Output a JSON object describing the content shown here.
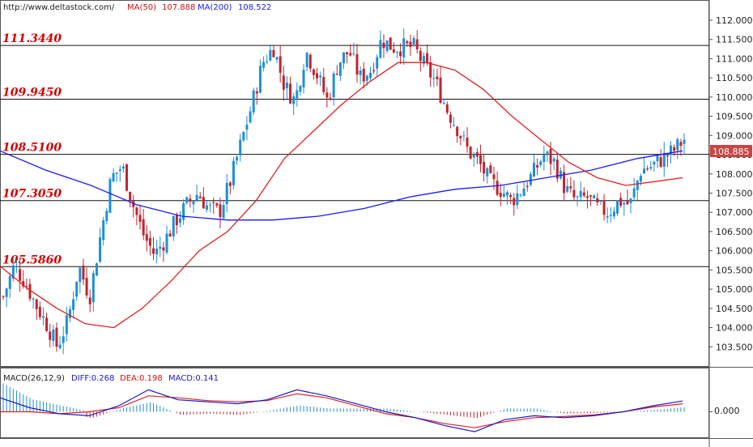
{
  "header": {
    "source": "http://www.deltastock.com/",
    "ma50_label": "MA(50)",
    "ma50_value": "107.888",
    "ma200_label": "MA(200)",
    "ma200_value": "108.522"
  },
  "current_price": "108.885",
  "colors": {
    "bull": "#1e8fd6",
    "bear": "#c0242e",
    "ma50": "#e02020",
    "ma200": "#1a1aff",
    "level_text": "#d40000",
    "price_tag_bg": "#cc4444",
    "diff": "#1a1acc",
    "dea": "#e02020"
  },
  "macd_panel": {
    "label": "MACD(26,12,9)",
    "diff_label": "DIFF:0.268",
    "dea_label": "DEA:0.198",
    "macd_label": "MACD:0.141",
    "zero_tick": "0.000"
  },
  "chart_data": {
    "type": "candlestick",
    "ylim": [
      103.0,
      112.4
    ],
    "y_ticks": [
      "103.500",
      "104.000",
      "104.500",
      "105.000",
      "105.500",
      "106.000",
      "106.500",
      "107.000",
      "107.500",
      "108.000",
      "108.500",
      "109.000",
      "109.500",
      "110.000",
      "110.500",
      "111.000",
      "111.500",
      "112.000"
    ],
    "levels": [
      {
        "value": 111.344,
        "label": "111.3440"
      },
      {
        "value": 109.945,
        "label": "109.9450"
      },
      {
        "value": 108.51,
        "label": "108.5100"
      },
      {
        "value": 107.305,
        "label": "107.3050"
      },
      {
        "value": 105.586,
        "label": "105.5860"
      }
    ],
    "close_path": [
      104.8,
      105.6,
      105.2,
      104.6,
      104.1,
      103.5,
      104.2,
      105.6,
      104.8,
      106.4,
      107.9,
      108.2,
      107.2,
      106.4,
      105.9,
      106.3,
      106.8,
      107.2,
      107.5,
      107.1,
      107.0,
      107.8,
      108.8,
      109.8,
      110.9,
      111.3,
      110.3,
      109.9,
      111.2,
      110.6,
      109.9,
      110.9,
      111.2,
      110.5,
      110.7,
      111.5,
      111.3,
      111.3,
      111.3,
      110.8,
      110.4,
      109.7,
      109.2,
      108.6,
      108.3,
      107.8,
      107.6,
      107.3,
      107.6,
      108.0,
      108.5,
      108.3,
      107.6,
      107.3,
      107.4,
      107.1,
      107.0,
      107.3,
      107.2,
      108.1,
      108.2,
      108.4,
      108.6,
      108.9
    ],
    "ma50": [
      105.6,
      105.0,
      104.5,
      104.1,
      104.0,
      104.5,
      105.2,
      106.0,
      106.5,
      107.3,
      108.4,
      109.1,
      109.8,
      110.4,
      110.9,
      110.9,
      110.7,
      110.2,
      109.5,
      108.9,
      108.3,
      107.9,
      107.7,
      107.8,
      107.9
    ],
    "ma200": [
      108.6,
      108.1,
      107.7,
      107.2,
      106.9,
      106.8,
      106.8,
      106.9,
      107.1,
      107.4,
      107.6,
      107.7,
      107.9,
      108.1,
      108.4,
      108.6
    ],
    "macd": {
      "ylim": [
        -0.6,
        0.7
      ],
      "diff": [
        0.35,
        0.1,
        -0.05,
        -0.1,
        0.15,
        0.55,
        0.3,
        0.25,
        0.2,
        0.3,
        0.55,
        0.4,
        0.2,
        0.0,
        -0.15,
        -0.35,
        -0.5,
        -0.2,
        -0.1,
        -0.15,
        -0.1,
        0.0,
        0.15,
        0.27
      ],
      "dea": [
        0.0,
        0.0,
        -0.05,
        0.0,
        0.1,
        0.4,
        0.35,
        0.28,
        0.25,
        0.28,
        0.45,
        0.35,
        0.15,
        -0.05,
        -0.15,
        -0.3,
        -0.4,
        -0.25,
        -0.15,
        -0.12,
        -0.08,
        0.0,
        0.12,
        0.2
      ]
    }
  }
}
